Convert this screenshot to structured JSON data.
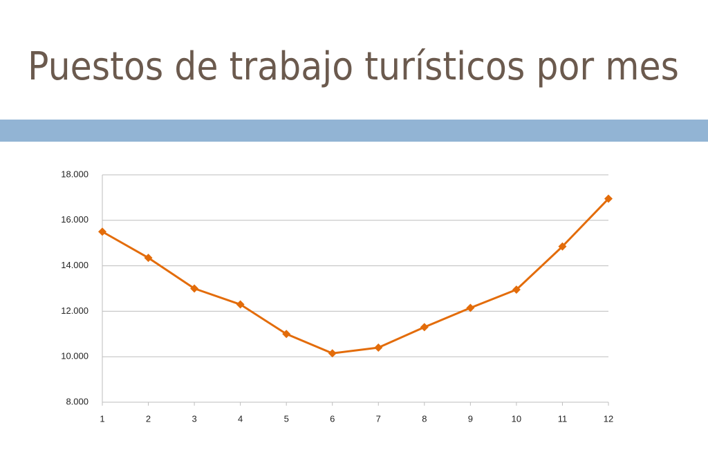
{
  "chart_data": {
    "type": "line",
    "title": "Puestos de trabajo turísticos por mes",
    "x": [
      1,
      2,
      3,
      4,
      5,
      6,
      7,
      8,
      9,
      10,
      11,
      12
    ],
    "series": [
      {
        "name": "Puestos de trabajo",
        "color": "#e36c0a",
        "values": [
          15500,
          14350,
          13000,
          12300,
          11000,
          10150,
          10400,
          11300,
          12150,
          12950,
          14850,
          16950
        ]
      }
    ],
    "xlim": [
      1,
      12
    ],
    "xticks": [
      1,
      2,
      3,
      4,
      5,
      6,
      7,
      8,
      9,
      10,
      11,
      12
    ],
    "ylim": [
      8000,
      18000
    ],
    "yticks": [
      {
        "value": 8000,
        "label": "8.000"
      },
      {
        "value": 10000,
        "label": "10.000"
      },
      {
        "value": 12000,
        "label": "12.000"
      },
      {
        "value": 14000,
        "label": "14.000"
      },
      {
        "value": 16000,
        "label": "16.000"
      },
      {
        "value": 18000,
        "label": "18.000"
      }
    ],
    "grid": true
  }
}
